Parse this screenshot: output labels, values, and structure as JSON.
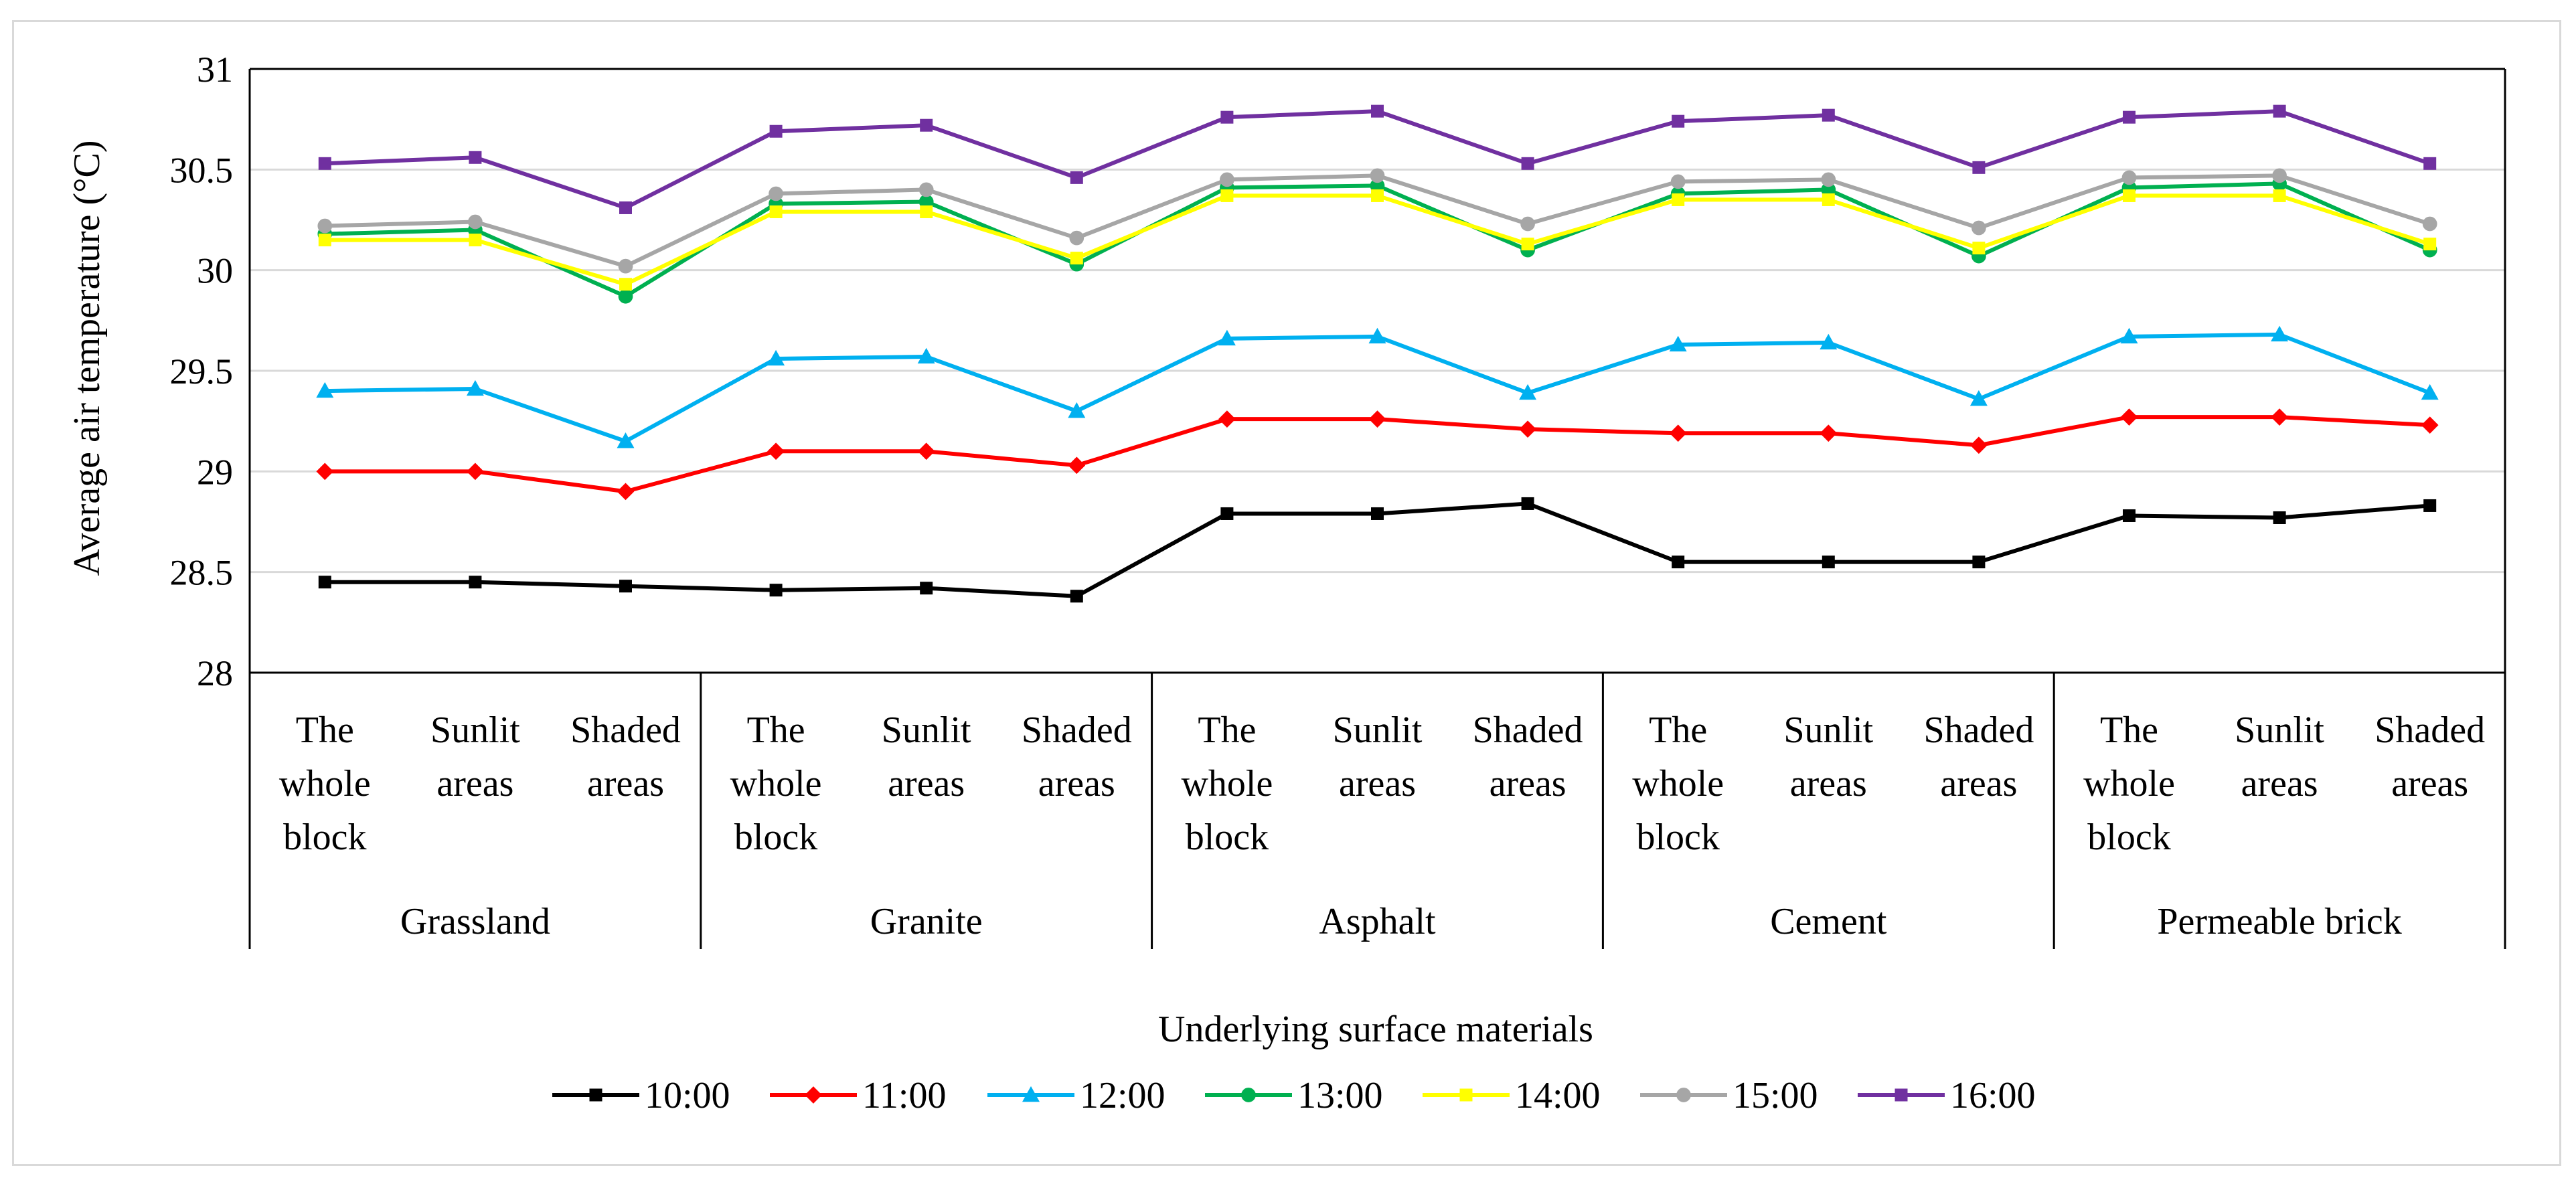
{
  "chart_data": {
    "type": "line",
    "title": "",
    "ylabel": "Average air temperature   (°C)",
    "xlabel": "Underlying surface materials",
    "ylim": [
      28,
      31
    ],
    "yticks": [
      28,
      28.5,
      29,
      29.5,
      30,
      30.5,
      31
    ],
    "ytick_labels": [
      "28",
      "28.5",
      "29",
      "29.5",
      "30",
      "30.5",
      "31"
    ],
    "grid": true,
    "legend_position": "bottom",
    "groups": [
      {
        "name": "Grassland",
        "categories": [
          [
            "The",
            "whole",
            "block"
          ],
          [
            "Sunlit",
            "areas"
          ],
          [
            "Shaded",
            "areas"
          ]
        ]
      },
      {
        "name": "Granite",
        "categories": [
          [
            "The",
            "whole",
            "block"
          ],
          [
            "Sunlit",
            "areas"
          ],
          [
            "Shaded",
            "areas"
          ]
        ]
      },
      {
        "name": "Asphalt",
        "categories": [
          [
            "The",
            "whole",
            "block"
          ],
          [
            "Sunlit",
            "areas"
          ],
          [
            "Shaded",
            "areas"
          ]
        ]
      },
      {
        "name": "Cement",
        "categories": [
          [
            "The",
            "whole",
            "block"
          ],
          [
            "Sunlit",
            "areas"
          ],
          [
            "Shaded",
            "areas"
          ]
        ]
      },
      {
        "name": "Permeable brick",
        "categories": [
          [
            "The",
            "whole",
            "block"
          ],
          [
            "Sunlit",
            "areas"
          ],
          [
            "Shaded",
            "areas"
          ]
        ]
      }
    ],
    "series": [
      {
        "name": "10:00",
        "color": "#000000",
        "marker": "square",
        "values": [
          28.45,
          28.45,
          28.43,
          28.41,
          28.42,
          28.38,
          28.79,
          28.79,
          28.84,
          28.55,
          28.55,
          28.55,
          28.78,
          28.77,
          28.83
        ]
      },
      {
        "name": "11:00",
        "color": "#ff0000",
        "marker": "diamond",
        "values": [
          29.0,
          29.0,
          28.9,
          29.1,
          29.1,
          29.03,
          29.26,
          29.26,
          29.21,
          29.19,
          29.19,
          29.13,
          29.27,
          29.27,
          29.23
        ]
      },
      {
        "name": "12:00",
        "color": "#00b0f0",
        "marker": "triangle",
        "values": [
          29.4,
          29.41,
          29.15,
          29.56,
          29.57,
          29.3,
          29.66,
          29.67,
          29.39,
          29.63,
          29.64,
          29.36,
          29.67,
          29.68,
          29.39
        ]
      },
      {
        "name": "13:00",
        "color": "#00b050",
        "marker": "circle",
        "values": [
          30.18,
          30.2,
          29.87,
          30.33,
          30.34,
          30.03,
          30.41,
          30.42,
          30.1,
          30.38,
          30.4,
          30.07,
          30.41,
          30.43,
          30.1
        ]
      },
      {
        "name": "14:00",
        "color": "#ffff00",
        "marker": "square",
        "values": [
          30.15,
          30.15,
          29.93,
          30.29,
          30.29,
          30.06,
          30.37,
          30.37,
          30.13,
          30.35,
          30.35,
          30.11,
          30.37,
          30.37,
          30.13
        ]
      },
      {
        "name": "15:00",
        "color": "#a6a6a6",
        "marker": "circle",
        "values": [
          30.22,
          30.24,
          30.02,
          30.38,
          30.4,
          30.16,
          30.45,
          30.47,
          30.23,
          30.44,
          30.45,
          30.21,
          30.46,
          30.47,
          30.23
        ]
      },
      {
        "name": "16:00",
        "color": "#7030a0",
        "marker": "square",
        "values": [
          30.53,
          30.56,
          30.31,
          30.69,
          30.72,
          30.46,
          30.76,
          30.79,
          30.53,
          30.74,
          30.77,
          30.51,
          30.76,
          30.79,
          30.53
        ]
      }
    ]
  }
}
